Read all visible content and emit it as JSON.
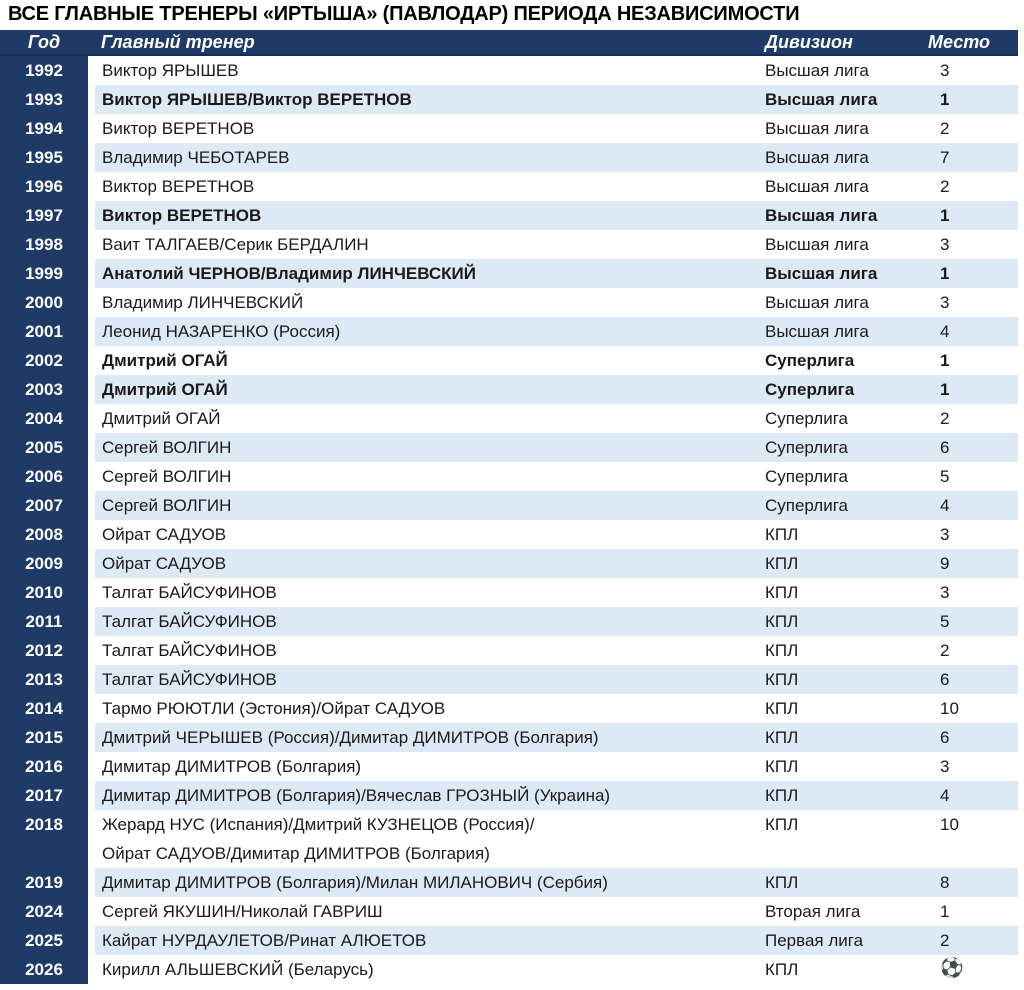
{
  "title": "ВСЕ ГЛАВНЫЕ ТРЕНЕРЫ «ИРТЫША» (ПАВЛОДАР) ПЕРИОДА НЕЗАВИСИМОСТИ",
  "colors": {
    "navy": "#1f3a66",
    "alt_row": "#dde9f5",
    "row_bg": "#ffffff",
    "header_border": "#152a50"
  },
  "icons": {
    "soccer_ball": "⚽"
  },
  "table": {
    "columns": {
      "year": "Год",
      "coach": "Главный тренер",
      "division": "Дивизион",
      "place": "Место"
    },
    "rows": [
      {
        "year": "1992",
        "coach": "Виктор ЯРЫШЕВ",
        "division": "Высшая лига",
        "place": "3",
        "bold": false
      },
      {
        "year": "1993",
        "coach": "Виктор ЯРЫШЕВ/Виктор ВЕРЕТНОВ",
        "division": "Высшая лига",
        "place": "1",
        "bold": true
      },
      {
        "year": "1994",
        "coach": "Виктор ВЕРЕТНОВ",
        "division": "Высшая лига",
        "place": "2",
        "bold": false
      },
      {
        "year": "1995",
        "coach": "Владимир ЧЕБОТАРЕВ",
        "division": "Высшая лига",
        "place": "7",
        "bold": false
      },
      {
        "year": "1996",
        "coach": "Виктор ВЕРЕТНОВ",
        "division": "Высшая лига",
        "place": "2",
        "bold": false
      },
      {
        "year": "1997",
        "coach": "Виктор ВЕРЕТНОВ",
        "division": "Высшая лига",
        "place": "1",
        "bold": true
      },
      {
        "year": "1998",
        "coach": "Ваит ТАЛГАЕВ/Серик БЕРДАЛИН",
        "division": "Высшая лига",
        "place": "3",
        "bold": false
      },
      {
        "year": "1999",
        "coach": "Анатолий ЧЕРНОВ/Владимир ЛИНЧЕВСКИЙ",
        "division": "Высшая лига",
        "place": "1",
        "bold": true
      },
      {
        "year": "2000",
        "coach": "Владимир ЛИНЧЕВСКИЙ",
        "division": "Высшая лига",
        "place": "3",
        "bold": false
      },
      {
        "year": "2001",
        "coach": "Леонид НАЗАРЕНКО (Россия)",
        "division": "Высшая лига",
        "place": "4",
        "bold": false
      },
      {
        "year": "2002",
        "coach": "Дмитрий ОГАЙ",
        "division": "Суперлига",
        "place": "1",
        "bold": true
      },
      {
        "year": "2003",
        "coach": "Дмитрий ОГАЙ",
        "division": "Суперлига",
        "place": "1",
        "bold": true
      },
      {
        "year": "2004",
        "coach": "Дмитрий ОГАЙ",
        "division": "Суперлига",
        "place": "2",
        "bold": false
      },
      {
        "year": "2005",
        "coach": "Сергей ВОЛГИН",
        "division": "Суперлига",
        "place": "6",
        "bold": false
      },
      {
        "year": "2006",
        "coach": "Сергей ВОЛГИН",
        "division": "Суперлига",
        "place": "5",
        "bold": false
      },
      {
        "year": "2007",
        "coach": "Сергей ВОЛГИН",
        "division": "Суперлига",
        "place": "4",
        "bold": false
      },
      {
        "year": "2008",
        "coach": "Ойрат САДУОВ",
        "division": "КПЛ",
        "place": "3",
        "bold": false
      },
      {
        "year": "2009",
        "coach": "Ойрат САДУОВ",
        "division": "КПЛ",
        "place": "9",
        "bold": false
      },
      {
        "year": "2010",
        "coach": "Талгат БАЙСУФИНОВ",
        "division": "КПЛ",
        "place": "3",
        "bold": false
      },
      {
        "year": "2011",
        "coach": "Талгат БАЙСУФИНОВ",
        "division": "КПЛ",
        "place": "5",
        "bold": false
      },
      {
        "year": "2012",
        "coach": "Талгат БАЙСУФИНОВ",
        "division": "КПЛ",
        "place": "2",
        "bold": false
      },
      {
        "year": "2013",
        "coach": "Талгат БАЙСУФИНОВ",
        "division": "КПЛ",
        "place": "6",
        "bold": false
      },
      {
        "year": "2014",
        "coach": "Тармо РЮЮТЛИ (Эстония)/Ойрат САДУОВ",
        "division": "КПЛ",
        "place": "10",
        "bold": false
      },
      {
        "year": "2015",
        "coach": "Дмитрий ЧЕРЫШЕВ (Россия)/Димитар ДИМИТРОВ (Болгария)",
        "division": "КПЛ",
        "place": "6",
        "bold": false
      },
      {
        "year": "2016",
        "coach": "Димитар ДИМИТРОВ (Болгария)",
        "division": "КПЛ",
        "place": "3",
        "bold": false
      },
      {
        "year": "2017",
        "coach": "Димитар ДИМИТРОВ (Болгария)/Вячеслав ГРОЗНЫЙ (Украина)",
        "division": "КПЛ",
        "place": "4",
        "bold": false
      },
      {
        "year": "2018",
        "coach": "Жерард НУС (Испания)/Дмитрий КУЗНЕЦОВ (Россия)/",
        "coach_line2": "Ойрат САДУОВ/Димитар ДИМИТРОВ (Болгария)",
        "division": "КПЛ",
        "place": "10",
        "bold": false
      },
      {
        "year": "2019",
        "coach": "Димитар ДИМИТРОВ (Болгария)/Милан МИЛАНОВИЧ (Сербия)",
        "division": "КПЛ",
        "place": "8",
        "bold": false
      },
      {
        "year": "2024",
        "coach": "Сергей ЯКУШИН/Николай ГАВРИШ",
        "division": "Вторая лига",
        "place": "1",
        "bold": false
      },
      {
        "year": "2025",
        "coach": "Кайрат НУРДАУЛЕТОВ/Ринат АЛЮЕТОВ",
        "division": "Первая лига",
        "place": "2",
        "bold": false
      },
      {
        "year": "2026",
        "coach": "Кирилл АЛЬШЕВСКИЙ (Беларусь)",
        "division": "КПЛ",
        "place": "",
        "place_icon": "soccer-ball",
        "bold": false
      }
    ]
  }
}
